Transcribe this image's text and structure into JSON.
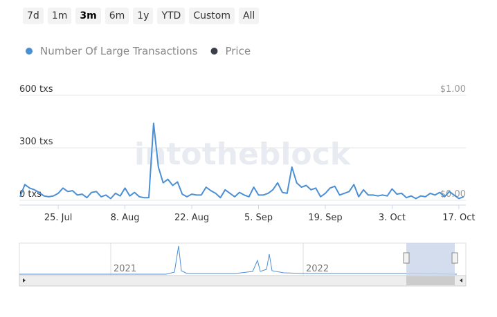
{
  "range_buttons": [
    "7d",
    "1m",
    "3m",
    "6m",
    "1y",
    "YTD",
    "Custom",
    "All"
  ],
  "selected_range": "3m",
  "watermark": "intotheblock",
  "navigator": {
    "labels": [
      "2021",
      "2022"
    ]
  },
  "chart_data": {
    "type": "line",
    "categories": [
      null,
      null,
      null,
      null,
      null,
      null,
      null,
      null,
      "25. Jul",
      null,
      null,
      null,
      null,
      null,
      null,
      null,
      null,
      null,
      null,
      null,
      null,
      null,
      "8. Aug",
      null,
      null,
      null,
      null,
      null,
      null,
      null,
      null,
      null,
      null,
      null,
      null,
      null,
      "22. Aug",
      null,
      null,
      null,
      null,
      null,
      null,
      null,
      null,
      null,
      null,
      null,
      null,
      null,
      "5. Sep",
      null,
      null,
      null,
      null,
      null,
      null,
      null,
      null,
      null,
      null,
      null,
      null,
      null,
      "19. Sep",
      null,
      null,
      null,
      null,
      null,
      null,
      null,
      null,
      null,
      null,
      null,
      null,
      null,
      "3. Oct",
      null,
      null,
      null,
      null,
      null,
      null,
      null,
      null,
      null,
      null,
      null,
      null,
      null,
      "17. Oct",
      null
    ],
    "series": [
      {
        "name": "Number Of Large Transactions",
        "color": "#4a8fd4",
        "values": [
          20,
          90,
          70,
          60,
          45,
          25,
          20,
          25,
          40,
          70,
          50,
          55,
          30,
          35,
          15,
          45,
          50,
          20,
          30,
          10,
          40,
          25,
          70,
          25,
          45,
          20,
          15,
          15,
          440,
          190,
          100,
          120,
          85,
          105,
          35,
          20,
          35,
          30,
          30,
          75,
          55,
          40,
          15,
          60,
          40,
          20,
          45,
          30,
          20,
          75,
          30,
          30,
          40,
          60,
          100,
          45,
          40,
          190,
          100,
          75,
          85,
          60,
          70,
          20,
          40,
          70,
          80,
          30,
          40,
          50,
          90,
          20,
          60,
          30,
          30,
          25,
          30,
          25,
          65,
          35,
          40,
          15,
          25,
          10,
          25,
          20,
          40,
          30,
          45,
          20,
          50,
          30,
          10,
          20
        ]
      },
      {
        "name": "Price",
        "color": "#3a3f4a",
        "axis": "y2",
        "values": [
          null,
          null,
          null,
          null,
          null,
          null,
          null,
          null,
          null,
          null,
          null,
          null,
          null,
          null,
          null,
          null,
          null,
          null,
          null,
          null,
          null,
          null,
          null,
          null,
          null,
          null,
          null,
          null,
          null,
          null,
          null,
          null,
          null,
          null,
          null,
          null,
          null,
          null,
          null,
          null,
          null,
          null,
          null,
          null,
          null,
          null,
          null,
          null,
          null,
          null,
          null,
          null,
          null,
          null,
          null,
          null,
          null,
          null,
          null,
          null,
          null,
          null,
          null,
          null,
          null,
          null,
          null,
          null,
          null,
          null,
          null,
          null,
          null,
          null,
          null,
          null,
          null,
          null,
          null,
          null,
          null,
          null,
          null,
          null,
          null,
          null,
          null,
          null,
          null,
          null,
          null,
          null,
          null,
          null
        ]
      }
    ],
    "ylim": [
      0,
      600
    ],
    "yticks": [
      {
        "value": 0,
        "label": "0 txs"
      },
      {
        "value": 300,
        "label": "300 txs"
      },
      {
        "value": 600,
        "label": "600 txs"
      }
    ],
    "y2lim": [
      0,
      1
    ],
    "y2ticks": [
      {
        "value": 0,
        "label": "$0.00"
      },
      {
        "value": 1,
        "label": "$1.00"
      }
    ],
    "grid": true
  }
}
